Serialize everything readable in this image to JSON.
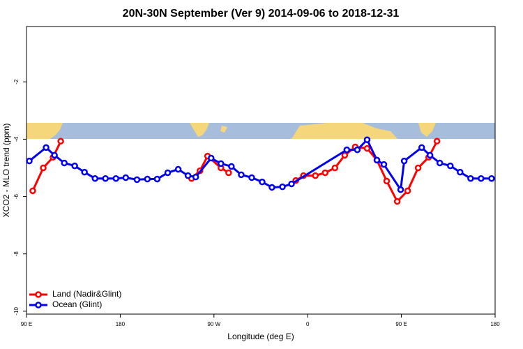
{
  "chart_data": {
    "type": "line",
    "title": "20N-30N September (Ver 9)   2014-09-06 to 2018-12-31",
    "x_label": "Longitude (deg E)",
    "y_label": "XCO2 - MLO trend (ppm)",
    "xlim": [
      90,
      540
    ],
    "xticks": [
      {
        "value": 90,
        "label": "90 E"
      },
      180,
      {
        "value": 270,
        "label": "90 W"
      },
      {
        "value": 360,
        "label": "0"
      },
      {
        "value": 450,
        "label": "90 E"
      },
      {
        "value": 540,
        "label": "180"
      }
    ],
    "ylim": [
      -10.1,
      -0.07
    ],
    "yticks": [
      -10,
      -8,
      -6,
      -4,
      -2
    ],
    "legend": "bottom-left",
    "series": [
      {
        "name": "Land (Nadir&Glint)",
        "color": "#ff0000",
        "x": [
          96.0,
          106.1,
          115.5,
          122.9,
          null,
          248.5,
          256.6,
          263.9,
          276.7,
          284.1,
          null,
          348.6,
          356.0,
          367.4,
          376.8,
          386.2,
          395.6,
          405.7,
          417.1,
          426.5,
          435.9,
          446.0,
          456.0,
          466.1,
          476.2,
          484.2
        ],
        "values": [
          -5.8,
          -5.0,
          -4.63,
          -4.07,
          null,
          -5.37,
          -5.1,
          -4.59,
          -5.0,
          -5.17,
          null,
          -5.44,
          -5.27,
          -5.27,
          -5.17,
          -5.0,
          -4.56,
          -4.27,
          -4.32,
          -4.73,
          -5.46,
          -6.17,
          -5.8,
          -5.0,
          -4.63,
          -4.07
        ]
      },
      {
        "name": "Ocean (Glint)",
        "color": "#0000ee",
        "x": [
          92.7,
          108.8,
          116.9,
          126.3,
          136.3,
          145.7,
          155.8,
          165.8,
          175.9,
          185.3,
          196.1,
          206.1,
          215.5,
          225.6,
          235.7,
          245.1,
          252.5,
          267.3,
          276.7,
          286.8,
          296.2,
          306.3,
          316.3,
          325.7,
          335.8,
          344.5,
          397.6,
          407.7,
          417.1,
          426.5,
          433.2,
          449.3,
          452.7,
          469.5,
          477.5,
          486.9,
          497.0,
          506.4,
          516.5,
          526.5,
          536.6
        ],
        "values": [
          -4.76,
          -4.29,
          -4.56,
          -4.83,
          -4.93,
          -5.15,
          -5.37,
          -5.37,
          -5.37,
          -5.34,
          -5.41,
          -5.39,
          -5.39,
          -5.17,
          -5.05,
          -5.27,
          -5.32,
          -4.66,
          -4.85,
          -4.95,
          -5.24,
          -5.34,
          -5.49,
          -5.68,
          -5.66,
          -5.56,
          -4.37,
          -4.37,
          -4.02,
          -4.73,
          -4.88,
          -5.76,
          -4.76,
          -4.29,
          -4.56,
          -4.83,
          -4.93,
          -5.15,
          -5.37,
          -5.37,
          -5.37
        ]
      }
    ]
  }
}
